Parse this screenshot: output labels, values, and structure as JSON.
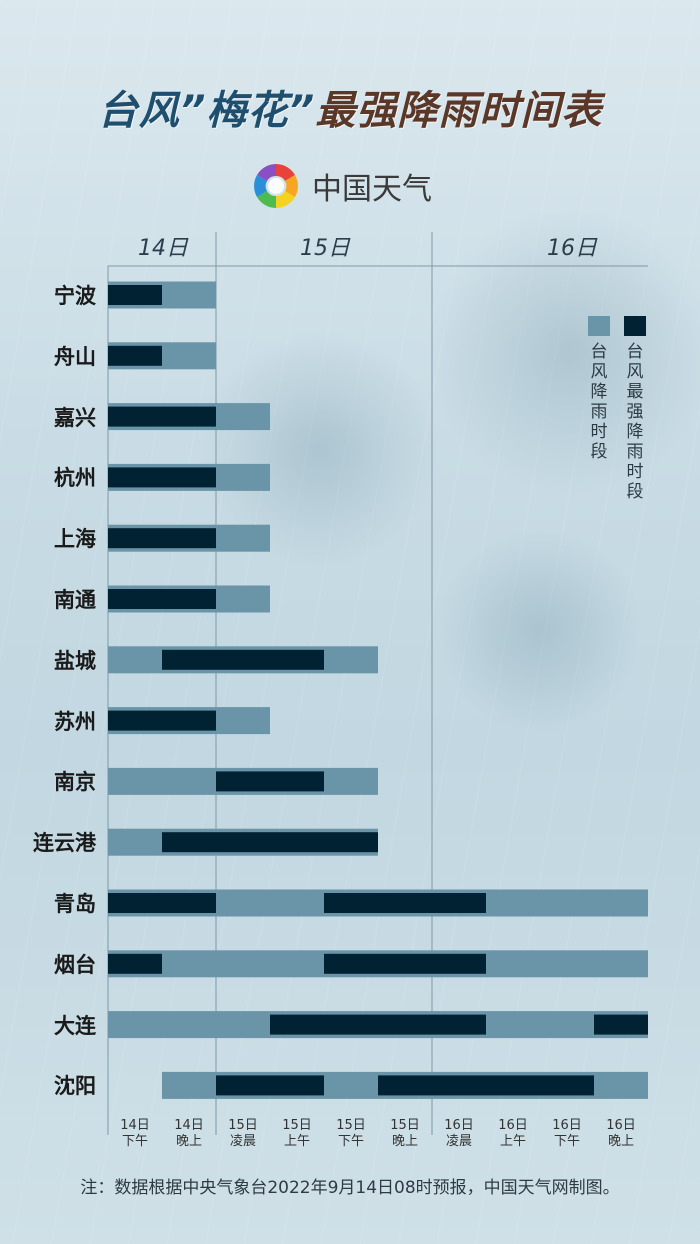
{
  "title": {
    "part1": "台风”梅花”",
    "part2": "最强降雨时间表"
  },
  "logo": {
    "text": "中国天气",
    "icon": "sun-swirl-logo-icon"
  },
  "colors": {
    "rain": "#6a95a9",
    "strongest": "#012233",
    "title_blue": "#1f4f6e",
    "title_brown": "#5b3727"
  },
  "legend": {
    "items": [
      {
        "label": "台风降雨时段",
        "color": "#6a95a9"
      },
      {
        "label": "台风最强降雨时段",
        "color": "#012233"
      }
    ]
  },
  "note": "注：数据根据中央气象台2022年9月14日08时预报，中国天气网制图。",
  "chart_data": {
    "type": "gantt",
    "days": [
      "14日",
      "15日",
      "16日"
    ],
    "periods": [
      [
        "14日",
        "下午"
      ],
      [
        "14日",
        "晚上"
      ],
      [
        "15日",
        "凌晨"
      ],
      [
        "15日",
        "上午"
      ],
      [
        "15日",
        "下午"
      ],
      [
        "15日",
        "晚上"
      ],
      [
        "16日",
        "凌晨"
      ],
      [
        "16日",
        "上午"
      ],
      [
        "16日",
        "下午"
      ],
      [
        "16日",
        "晚上"
      ]
    ],
    "rows": [
      {
        "city": "宁波",
        "rain": [
          [
            0,
            2
          ]
        ],
        "strongest": [
          [
            0,
            1
          ]
        ]
      },
      {
        "city": "舟山",
        "rain": [
          [
            0,
            2
          ]
        ],
        "strongest": [
          [
            0,
            1
          ]
        ]
      },
      {
        "city": "嘉兴",
        "rain": [
          [
            0,
            3
          ]
        ],
        "strongest": [
          [
            0,
            2
          ]
        ]
      },
      {
        "city": "杭州",
        "rain": [
          [
            0,
            3
          ]
        ],
        "strongest": [
          [
            0,
            2
          ]
        ]
      },
      {
        "city": "上海",
        "rain": [
          [
            0,
            3
          ]
        ],
        "strongest": [
          [
            0,
            2
          ]
        ]
      },
      {
        "city": "南通",
        "rain": [
          [
            0,
            3
          ]
        ],
        "strongest": [
          [
            0,
            2
          ]
        ]
      },
      {
        "city": "盐城",
        "rain": [
          [
            0,
            5
          ]
        ],
        "strongest": [
          [
            1,
            4
          ]
        ]
      },
      {
        "city": "苏州",
        "rain": [
          [
            0,
            3
          ]
        ],
        "strongest": [
          [
            0,
            2
          ]
        ]
      },
      {
        "city": "南京",
        "rain": [
          [
            0,
            5
          ]
        ],
        "strongest": [
          [
            2,
            4
          ]
        ]
      },
      {
        "city": "连云港",
        "rain": [
          [
            0,
            5
          ]
        ],
        "strongest": [
          [
            1,
            5
          ]
        ]
      },
      {
        "city": "青岛",
        "rain": [
          [
            0,
            10
          ]
        ],
        "strongest": [
          [
            0,
            2
          ],
          [
            4,
            7
          ]
        ]
      },
      {
        "city": "烟台",
        "rain": [
          [
            0,
            10
          ]
        ],
        "strongest": [
          [
            0,
            1
          ],
          [
            4,
            7
          ]
        ]
      },
      {
        "city": "大连",
        "rain": [
          [
            0,
            10
          ]
        ],
        "strongest": [
          [
            3,
            7
          ],
          [
            9,
            10
          ]
        ]
      },
      {
        "city": "沈阳",
        "rain": [
          [
            1,
            10
          ]
        ],
        "strongest": [
          [
            2,
            4
          ],
          [
            5,
            9
          ]
        ]
      }
    ]
  }
}
